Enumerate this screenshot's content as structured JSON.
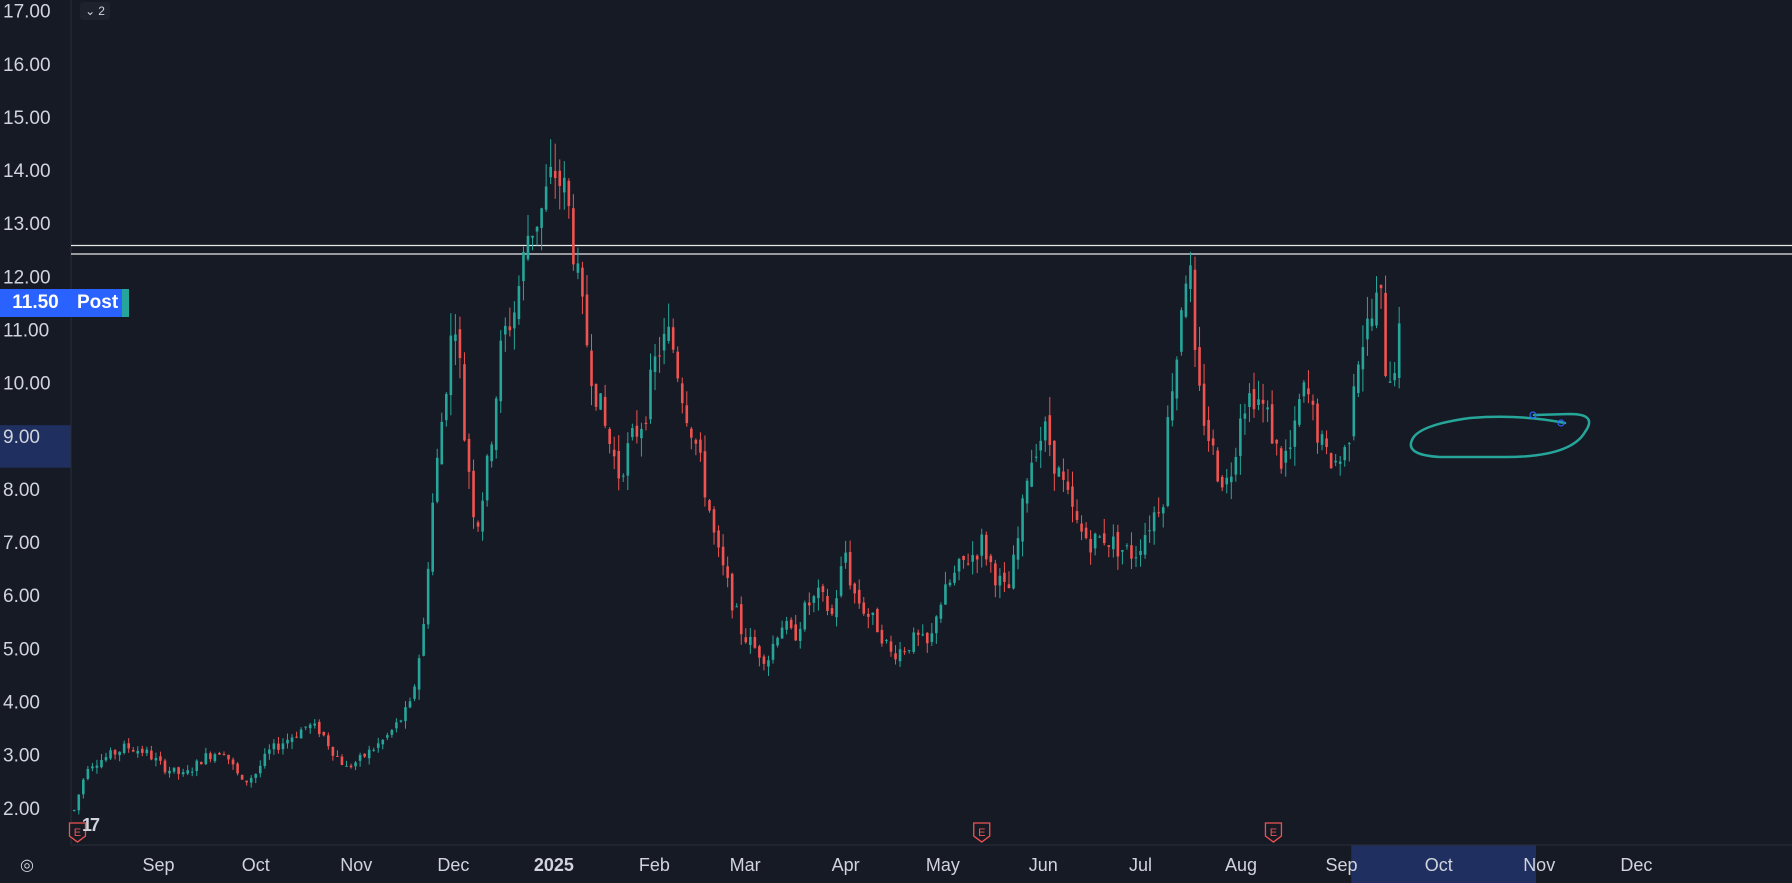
{
  "chart_data": {
    "type": "candlestick",
    "y_axis": {
      "ticks": [
        "17.00",
        "16.00",
        "15.00",
        "14.00",
        "13.00",
        "12.00",
        "11.00",
        "10.00",
        "9.00",
        "8.00",
        "7.00",
        "6.00",
        "5.00",
        "4.00",
        "3.00",
        "2.00"
      ],
      "range": [
        1.3,
        17.2
      ],
      "highlight_range": [
        8.4,
        9.2
      ]
    },
    "x_axis": {
      "labels": [
        {
          "text": "Sep",
          "day": 26
        },
        {
          "text": "Oct",
          "day": 56
        },
        {
          "text": "Nov",
          "day": 87
        },
        {
          "text": "Dec",
          "day": 117
        },
        {
          "text": "2025",
          "day": 148,
          "bold": true
        },
        {
          "text": "Feb",
          "day": 179
        },
        {
          "text": "Mar",
          "day": 207
        },
        {
          "text": "Apr",
          "day": 238
        },
        {
          "text": "May",
          "day": 268
        },
        {
          "text": "Jun",
          "day": 299
        },
        {
          "text": "Jul",
          "day": 329
        },
        {
          "text": "Aug",
          "day": 360
        },
        {
          "text": "Sep",
          "day": 391
        },
        {
          "text": "Oct",
          "day": 421
        },
        {
          "text": "Nov",
          "day": 452
        },
        {
          "text": "Dec",
          "day": 482
        }
      ],
      "range_days": [
        -1,
        530
      ],
      "highlight_days": [
        394,
        451
      ]
    },
    "horizontal_lines": [
      12.58,
      12.42
    ],
    "current_price": {
      "label": "11.50",
      "tag": "Post",
      "value": 11.5
    },
    "earnings_markers": [
      {
        "label": "E",
        "day": 1
      },
      {
        "label": "E",
        "day": 280
      },
      {
        "label": "E",
        "day": 370
      }
    ],
    "anchors": [
      [
        0,
        1.95
      ],
      [
        4,
        2.8
      ],
      [
        10,
        2.95
      ],
      [
        16,
        3.15
      ],
      [
        22,
        3.05
      ],
      [
        28,
        2.75
      ],
      [
        34,
        2.6
      ],
      [
        40,
        2.95
      ],
      [
        46,
        3.1
      ],
      [
        52,
        2.45
      ],
      [
        56,
        2.65
      ],
      [
        60,
        3.05
      ],
      [
        66,
        3.3
      ],
      [
        72,
        3.55
      ],
      [
        76,
        3.45
      ],
      [
        80,
        3.05
      ],
      [
        84,
        2.75
      ],
      [
        88,
        2.9
      ],
      [
        92,
        3.1
      ],
      [
        96,
        3.3
      ],
      [
        100,
        3.6
      ],
      [
        104,
        3.95
      ],
      [
        106,
        4.7
      ],
      [
        108,
        5.5
      ],
      [
        110,
        7.4
      ],
      [
        112,
        8.5
      ],
      [
        114,
        9.6
      ],
      [
        116,
        10.7
      ],
      [
        118,
        11.4
      ],
      [
        120,
        9.2
      ],
      [
        122,
        8.3
      ],
      [
        124,
        7.2
      ],
      [
        128,
        8.6
      ],
      [
        132,
        10.8
      ],
      [
        136,
        11.4
      ],
      [
        140,
        12.8
      ],
      [
        144,
        13.2
      ],
      [
        148,
        14.0
      ],
      [
        152,
        13.5
      ],
      [
        156,
        11.6
      ],
      [
        160,
        10.1
      ],
      [
        164,
        9.1
      ],
      [
        168,
        8.3
      ],
      [
        172,
        8.9
      ],
      [
        176,
        9.4
      ],
      [
        180,
        10.6
      ],
      [
        184,
        10.9
      ],
      [
        188,
        9.7
      ],
      [
        192,
        8.8
      ],
      [
        196,
        7.6
      ],
      [
        198,
        6.9
      ],
      [
        202,
        6.1
      ],
      [
        206,
        5.3
      ],
      [
        210,
        5.0
      ],
      [
        214,
        4.8
      ],
      [
        218,
        5.5
      ],
      [
        222,
        5.2
      ],
      [
        226,
        5.8
      ],
      [
        230,
        6.0
      ],
      [
        234,
        5.6
      ],
      [
        236,
        6.3
      ],
      [
        238,
        6.8
      ],
      [
        240,
        6.1
      ],
      [
        244,
        5.7
      ],
      [
        248,
        5.4
      ],
      [
        252,
        4.9
      ],
      [
        256,
        5.0
      ],
      [
        260,
        5.2
      ],
      [
        264,
        5.0
      ],
      [
        266,
        5.7
      ],
      [
        270,
        6.2
      ],
      [
        274,
        6.6
      ],
      [
        278,
        6.8
      ],
      [
        280,
        7.0
      ],
      [
        284,
        6.4
      ],
      [
        288,
        6.0
      ],
      [
        292,
        7.3
      ],
      [
        294,
        8.3
      ],
      [
        297,
        8.9
      ],
      [
        300,
        9.1
      ],
      [
        303,
        8.4
      ],
      [
        306,
        7.9
      ],
      [
        310,
        7.2
      ],
      [
        314,
        7.0
      ],
      [
        318,
        7.1
      ],
      [
        322,
        6.9
      ],
      [
        326,
        6.8
      ],
      [
        327,
        6.75
      ],
      [
        336,
        7.9
      ],
      [
        338,
        9.8
      ],
      [
        340,
        10.4
      ],
      [
        342,
        11.8
      ],
      [
        344,
        12.4
      ],
      [
        346,
        10.1
      ],
      [
        348,
        9.5
      ],
      [
        350,
        9.0
      ],
      [
        353,
        8.3
      ],
      [
        356,
        8.1
      ],
      [
        358,
        8.7
      ],
      [
        360,
        9.6
      ],
      [
        364,
        9.8
      ],
      [
        368,
        9.4
      ],
      [
        372,
        8.5
      ],
      [
        376,
        8.8
      ],
      [
        378,
        9.6
      ],
      [
        380,
        9.9
      ],
      [
        383,
        9.2
      ],
      [
        386,
        8.6
      ],
      [
        390,
        8.5
      ],
      [
        393,
        8.8
      ],
      [
        395,
        10.3
      ],
      [
        398,
        10.9
      ],
      [
        401,
        11.3
      ],
      [
        403,
        11.8
      ],
      [
        404,
        10.4
      ],
      [
        406,
        10.2
      ],
      [
        408,
        10.5
      ],
      [
        409,
        10.9
      ]
    ]
  }
}
